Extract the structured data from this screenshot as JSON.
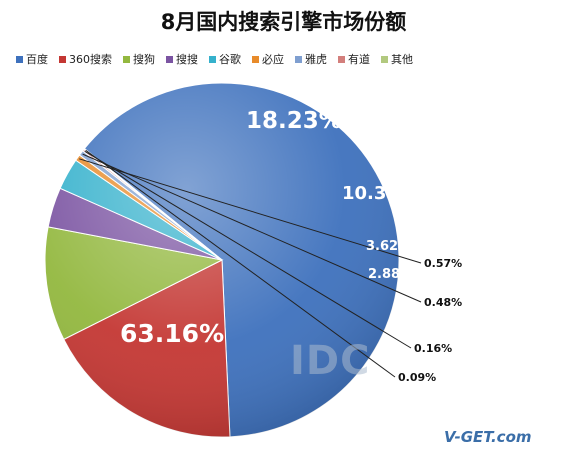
{
  "chart_data": {
    "type": "pie",
    "title": "8月国内搜索引擎市场份额",
    "legend_position": "top",
    "slices": [
      {
        "name": "百度",
        "value": 63.16,
        "label": "63.16%",
        "color": "#3e71bd"
      },
      {
        "name": "360搜索",
        "value": 18.23,
        "label": "18.23%",
        "color": "#c43733"
      },
      {
        "name": "搜狗",
        "value": 10.35,
        "label": "10.35%",
        "color": "#93b83f"
      },
      {
        "name": "搜搜",
        "value": 3.62,
        "label": "3.62%",
        "color": "#7b54a2"
      },
      {
        "name": "谷歌",
        "value": 2.88,
        "label": "2.88%",
        "color": "#35b1cc"
      },
      {
        "name": "必应",
        "value": 0.57,
        "label": "0.57%",
        "color": "#e88b2a"
      },
      {
        "name": "雅虎",
        "value": 0.48,
        "label": "0.48%",
        "color": "#7f9fd0"
      },
      {
        "name": "有道",
        "value": 0.16,
        "label": "0.16%",
        "color": "#d37f7c"
      },
      {
        "name": "其他",
        "value": 0.09,
        "label": "0.09%",
        "color": "#b2c97f"
      }
    ]
  },
  "watermark": {
    "idc": "IDC",
    "brand": "V-GET.com"
  }
}
